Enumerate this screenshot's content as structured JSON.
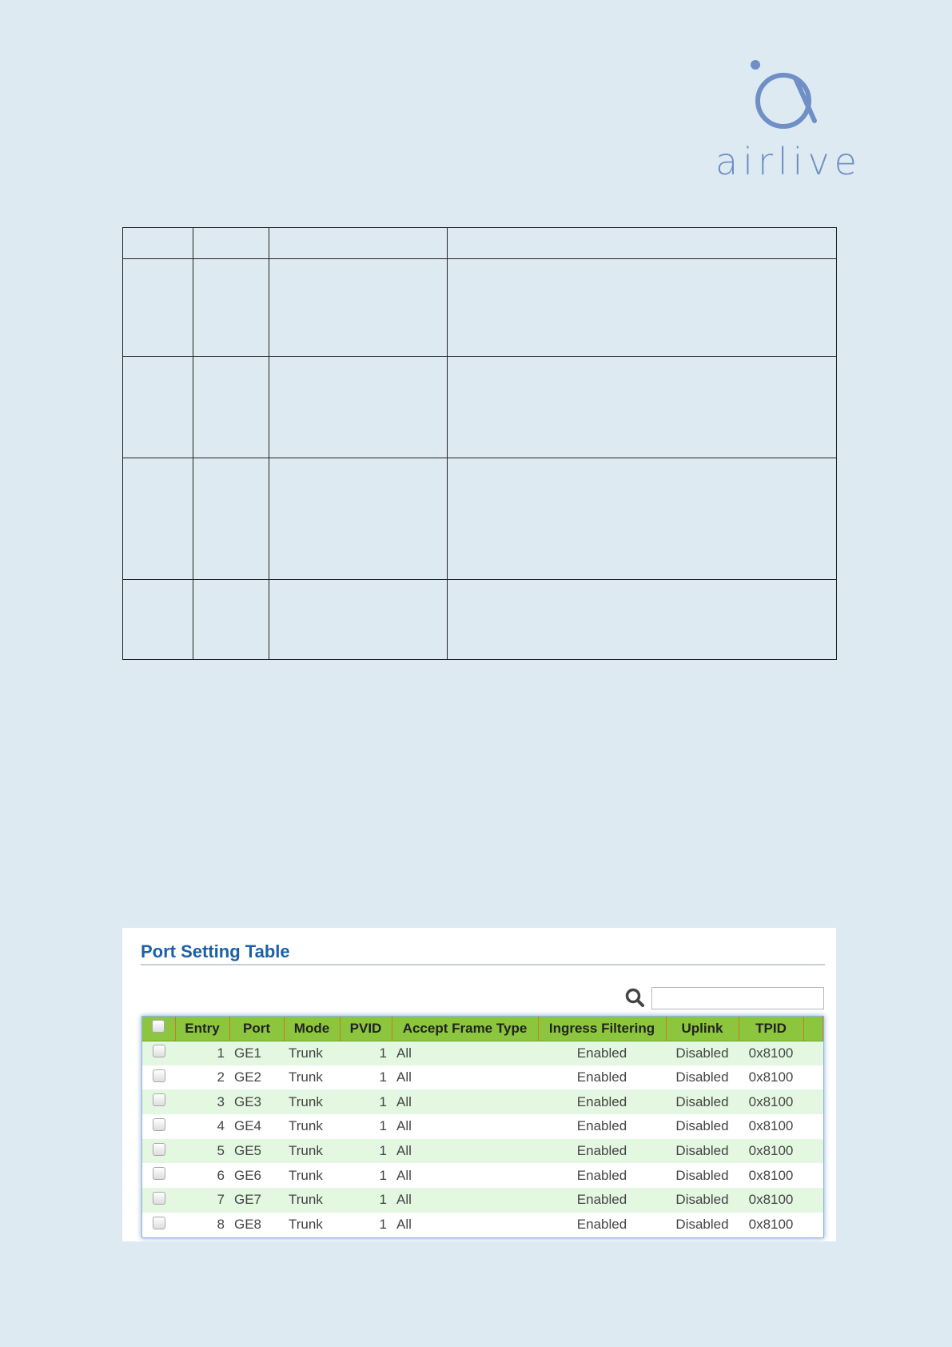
{
  "logo": {
    "text": "airlive"
  },
  "panel": {
    "title": "Port Setting Table",
    "search": {
      "value": "",
      "placeholder": ""
    },
    "columns": [
      "",
      "Entry",
      "Port",
      "Mode",
      "PVID",
      "Accept Frame Type",
      "Ingress Filtering",
      "Uplink",
      "TPID"
    ],
    "rows": [
      {
        "entry": "1",
        "port": "GE1",
        "mode": "Trunk",
        "pvid": "1",
        "aft": "All",
        "ingress": "Enabled",
        "uplink": "Disabled",
        "tpid": "0x8100"
      },
      {
        "entry": "2",
        "port": "GE2",
        "mode": "Trunk",
        "pvid": "1",
        "aft": "All",
        "ingress": "Enabled",
        "uplink": "Disabled",
        "tpid": "0x8100"
      },
      {
        "entry": "3",
        "port": "GE3",
        "mode": "Trunk",
        "pvid": "1",
        "aft": "All",
        "ingress": "Enabled",
        "uplink": "Disabled",
        "tpid": "0x8100"
      },
      {
        "entry": "4",
        "port": "GE4",
        "mode": "Trunk",
        "pvid": "1",
        "aft": "All",
        "ingress": "Enabled",
        "uplink": "Disabled",
        "tpid": "0x8100"
      },
      {
        "entry": "5",
        "port": "GE5",
        "mode": "Trunk",
        "pvid": "1",
        "aft": "All",
        "ingress": "Enabled",
        "uplink": "Disabled",
        "tpid": "0x8100"
      },
      {
        "entry": "6",
        "port": "GE6",
        "mode": "Trunk",
        "pvid": "1",
        "aft": "All",
        "ingress": "Enabled",
        "uplink": "Disabled",
        "tpid": "0x8100"
      },
      {
        "entry": "7",
        "port": "GE7",
        "mode": "Trunk",
        "pvid": "1",
        "aft": "All",
        "ingress": "Enabled",
        "uplink": "Disabled",
        "tpid": "0x8100"
      },
      {
        "entry": "8",
        "port": "GE8",
        "mode": "Trunk",
        "pvid": "1",
        "aft": "All",
        "ingress": "Enabled",
        "uplink": "Disabled",
        "tpid": "0x8100"
      }
    ]
  },
  "colors": {
    "header_green": "#8cc63f",
    "row_alt": "#e3f7e1",
    "title_blue": "#1d5fa6",
    "logo": "#6f8fc6"
  }
}
